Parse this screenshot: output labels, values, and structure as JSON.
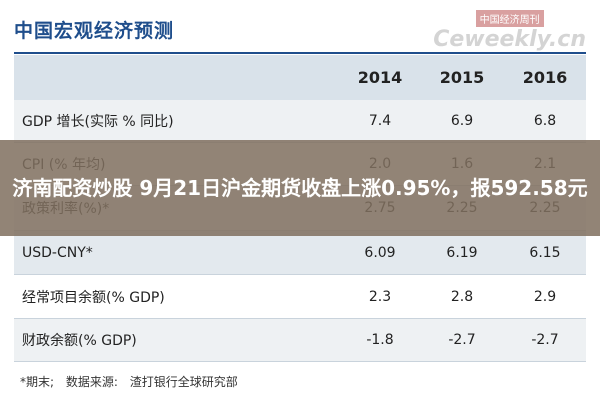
{
  "header": {
    "title": "中国宏观经济预测",
    "watermark_cn": "中国经济周刊",
    "watermark_en": "Ceweekly.cn"
  },
  "table": {
    "columns": [
      "2014",
      "2015",
      "2016"
    ],
    "rows": [
      [
        "GDP 增长(实际 % 同比)",
        "7.4",
        "6.9",
        "6.8"
      ],
      [
        "CPI (% 年均)",
        "2.0",
        "1.6",
        "2.1"
      ],
      [
        "政策利率(%)*",
        "2.75",
        "2.25",
        "2.25"
      ],
      [
        "USD-CNY*",
        "6.09",
        "6.19",
        "6.15"
      ],
      [
        "经常项目余额(% GDP)",
        "2.3",
        "2.8",
        "2.9"
      ],
      [
        "财政余额(% GDP)",
        "-1.8",
        "-2.7",
        "-2.7"
      ]
    ]
  },
  "footnote": "*期末;    数据来源: 渣打银行全球研究部",
  "overlay": {
    "text": "济南配资炒股 9月21日沪金期货收盘上涨0.95%，报592.58元"
  }
}
